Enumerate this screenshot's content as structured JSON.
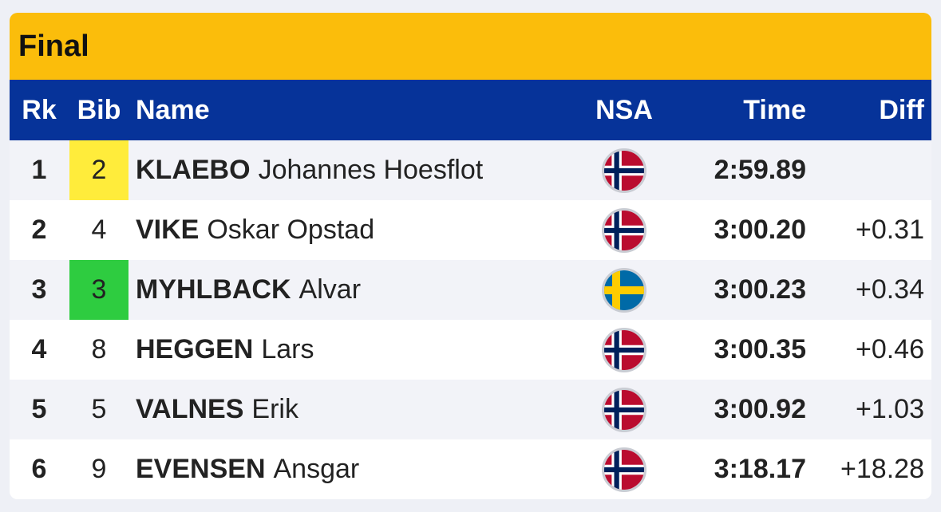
{
  "title": "Final",
  "columns": {
    "rk": "Rk",
    "bib": "Bib",
    "name": "Name",
    "nsa": "NSA",
    "time": "Time",
    "diff": "Diff"
  },
  "colors": {
    "title_bar": "#fbbd0b",
    "header": "#063399",
    "bib_yellow": "#ffec3b",
    "bib_green": "#2ecc40"
  },
  "rows": [
    {
      "rank": "1",
      "bib": "2",
      "bib_highlight": "yellow",
      "surname": "KLAEBO",
      "given": "Johannes Hoesflot",
      "nsa_flag": "norway-flag-icon",
      "time": "2:59.89",
      "diff": ""
    },
    {
      "rank": "2",
      "bib": "4",
      "bib_highlight": "none",
      "surname": "VIKE",
      "given": "Oskar Opstad",
      "nsa_flag": "norway-flag-icon",
      "time": "3:00.20",
      "diff": "+0.31"
    },
    {
      "rank": "3",
      "bib": "3",
      "bib_highlight": "green",
      "surname": "MYHLBACK",
      "given": "Alvar",
      "nsa_flag": "sweden-flag-icon",
      "time": "3:00.23",
      "diff": "+0.34"
    },
    {
      "rank": "4",
      "bib": "8",
      "bib_highlight": "none",
      "surname": "HEGGEN",
      "given": "Lars",
      "nsa_flag": "norway-flag-icon",
      "time": "3:00.35",
      "diff": "+0.46"
    },
    {
      "rank": "5",
      "bib": "5",
      "bib_highlight": "none",
      "surname": "VALNES",
      "given": "Erik",
      "nsa_flag": "norway-flag-icon",
      "time": "3:00.92",
      "diff": "+1.03"
    },
    {
      "rank": "6",
      "bib": "9",
      "bib_highlight": "none",
      "surname": "EVENSEN",
      "given": "Ansgar",
      "nsa_flag": "norway-flag-icon",
      "time": "3:18.17",
      "diff": "+18.28"
    }
  ]
}
